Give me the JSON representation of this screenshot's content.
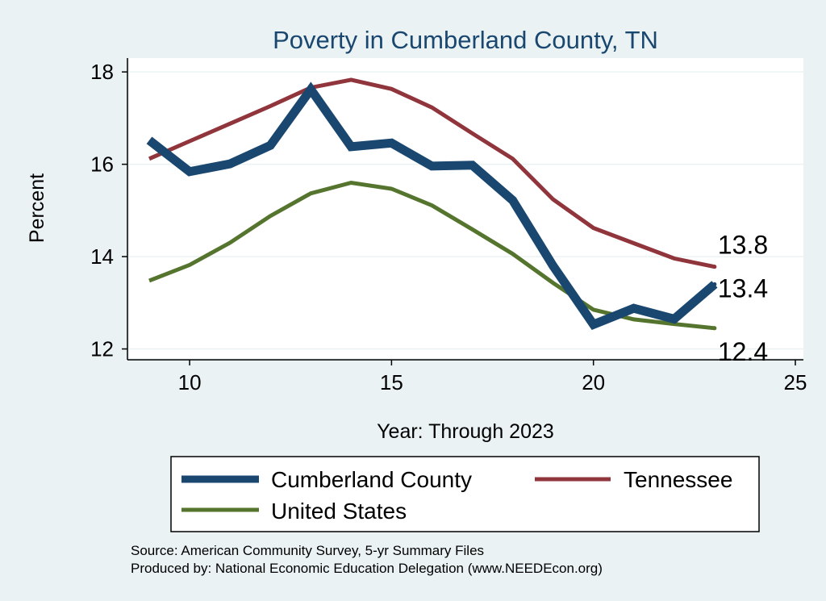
{
  "chart_data": {
    "type": "line",
    "title": "Poverty in Cumberland County, TN",
    "xlabel": "Year: Through 2023",
    "ylabel": "Percent",
    "xlim": [
      8.5,
      25.2
    ],
    "ylim": [
      11.8,
      18.3
    ],
    "xticks": [
      10,
      15,
      20,
      25
    ],
    "yticks": [
      12,
      14,
      16,
      18
    ],
    "grid": true,
    "legend_placement": "bottom",
    "x": [
      9,
      10,
      11,
      12,
      13,
      14,
      15,
      16,
      17,
      18,
      19,
      20,
      21,
      22,
      23
    ],
    "series": [
      {
        "name": "Cumberland County",
        "color": "#1a476f",
        "values": [
          16.52,
          15.84,
          16.01,
          16.41,
          17.62,
          16.38,
          16.46,
          15.96,
          15.98,
          15.22,
          13.8,
          12.53,
          12.88,
          12.65,
          13.4
        ],
        "end_label": "13.4"
      },
      {
        "name": "Tennessee",
        "color": "#90353b",
        "values": [
          16.12,
          16.5,
          16.88,
          17.26,
          17.66,
          17.83,
          17.63,
          17.23,
          16.67,
          16.12,
          15.24,
          14.62,
          14.29,
          13.96,
          13.78
        ],
        "end_label": "13.8"
      },
      {
        "name": "United States",
        "color": "#55752f",
        "values": [
          13.48,
          13.82,
          14.3,
          14.88,
          15.37,
          15.6,
          15.47,
          15.11,
          14.59,
          14.06,
          13.43,
          12.85,
          12.64,
          12.54,
          12.45
        ],
        "end_label": "12.4"
      }
    ],
    "notes": [
      "Source: American Community Survey, 5-yr Summary Files",
      "Produced by: National Economic Education Delegation (www.NEEDEcon.org)"
    ]
  },
  "colors": {
    "background": "#eaf2f3",
    "plot_background": "#ffffff",
    "title": "#1a476f",
    "grid": "#eaf2f3"
  }
}
